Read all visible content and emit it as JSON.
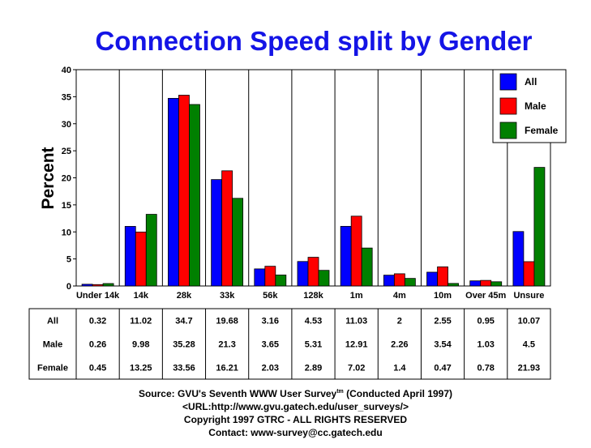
{
  "chart_data": {
    "type": "bar",
    "title": "Connection Speed split by Gender",
    "ylabel": "Percent",
    "xlabel": "",
    "ylim": [
      0,
      40
    ],
    "yticks": [
      0,
      5,
      10,
      15,
      20,
      25,
      30,
      35,
      40
    ],
    "grid": "vertical category separators",
    "legend_position": "top-right",
    "categories": [
      "Under 14k",
      "14k",
      "28k",
      "33k",
      "56k",
      "128k",
      "1m",
      "4m",
      "10m",
      "Over 45m",
      "Unsure"
    ],
    "series": [
      {
        "name": "All",
        "color": "#0000ff",
        "values": [
          0.32,
          11.02,
          34.7,
          19.68,
          3.16,
          4.53,
          11.03,
          2,
          2.55,
          0.95,
          10.07
        ]
      },
      {
        "name": "Male",
        "color": "#ff0000",
        "values": [
          0.26,
          9.98,
          35.28,
          21.3,
          3.65,
          5.31,
          12.91,
          2.26,
          3.54,
          1.03,
          4.5
        ]
      },
      {
        "name": "Female",
        "color": "#008000",
        "values": [
          0.45,
          13.25,
          33.56,
          16.21,
          2.03,
          2.89,
          7.02,
          1.4,
          0.47,
          0.78,
          21.93
        ]
      }
    ],
    "table": {
      "rows": [
        {
          "label": "All",
          "values": [
            "0.32",
            "11.02",
            "34.7",
            "19.68",
            "3.16",
            "4.53",
            "11.03",
            "2",
            "2.55",
            "0.95",
            "10.07"
          ]
        },
        {
          "label": "Male",
          "values": [
            "0.26",
            "9.98",
            "35.28",
            "21.3",
            "3.65",
            "5.31",
            "12.91",
            "2.26",
            "3.54",
            "1.03",
            "4.5"
          ]
        },
        {
          "label": "Female",
          "values": [
            "0.45",
            "13.25",
            "33.56",
            "16.21",
            "2.03",
            "2.89",
            "7.02",
            "1.4",
            "0.47",
            "0.78",
            "21.93"
          ]
        }
      ]
    }
  },
  "footer": {
    "source_prefix": "Source: GVU's Seventh WWW User Survey",
    "source_sup": "tm",
    "source_suffix": " (Conducted April 1997)",
    "url": "<URL:http://www.gvu.gatech.edu/user_surveys/>",
    "copyright": "Copyright 1997 GTRC - ALL RIGHTS RESERVED",
    "contact": "Contact: www-survey@cc.gatech.edu"
  }
}
